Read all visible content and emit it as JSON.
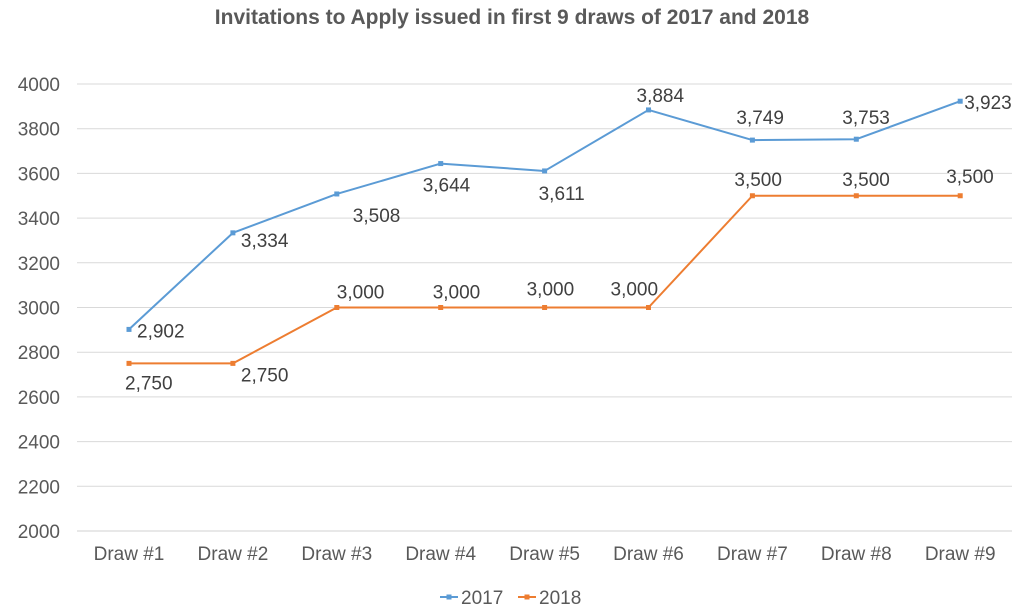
{
  "chart_data": {
    "type": "line",
    "title": "Invitations to Apply issued in first 9 draws of 2017 and 2018",
    "categories": [
      "Draw #1",
      "Draw #2",
      "Draw #3",
      "Draw #4",
      "Draw #5",
      "Draw #6",
      "Draw #7",
      "Draw #8",
      "Draw #9"
    ],
    "ylim": [
      2000,
      4000
    ],
    "yticks": [
      "2000",
      "2200",
      "2400",
      "2600",
      "2800",
      "3000",
      "3200",
      "3400",
      "3600",
      "3800",
      "4000"
    ],
    "grid": true,
    "legend_position": "bottom",
    "series": [
      {
        "name": "2017",
        "color": "#5b9bd5",
        "values": [
          2902,
          3334,
          3508,
          3644,
          3611,
          3884,
          3749,
          3753,
          3923
        ],
        "labels": [
          "2,902",
          "3,334",
          "3,508",
          "3,644",
          "3,611",
          "3,884",
          "3,749",
          "3,753",
          "3,923"
        ]
      },
      {
        "name": "2018",
        "color": "#ed7d31",
        "values": [
          2750,
          2750,
          3000,
          3000,
          3000,
          3000,
          3500,
          3500,
          3500
        ],
        "labels": [
          "2,750",
          "2,750",
          "3,000",
          "3,000",
          "3,000",
          "3,000",
          "3,500",
          "3,500",
          "3,500"
        ]
      }
    ]
  }
}
